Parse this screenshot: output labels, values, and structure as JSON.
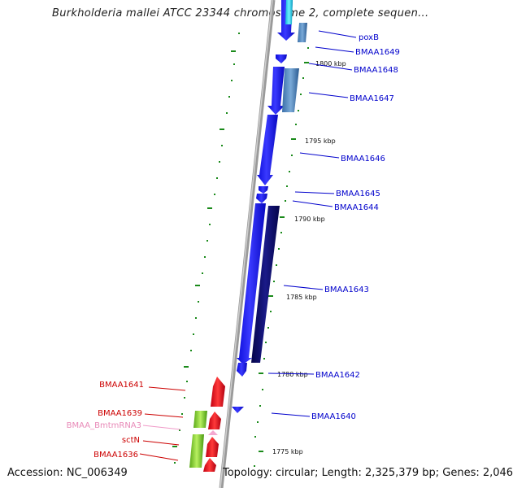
{
  "title": "Burkholderia mallei ATCC 23344 chromosome 2, complete sequen...",
  "footer": {
    "accession": "Accession: NC_006349",
    "stats": "Topology: circular; Length: 2,325,379 bp; Genes: 2,046"
  },
  "colors": {
    "forward_gene": "#1a1aee",
    "reverse_gene": "#0a0a6e",
    "forward_gene_light": "#5a90c8",
    "red_gene": "#e8202a",
    "green_gene": "#7ed22a",
    "rna_pink": "#f09ac8",
    "backbone": "#8a8a8a",
    "ticks": "#1a8a1a",
    "label_blue": "#0000cc",
    "label_red": "#cc0000"
  },
  "kbp_marks": [
    "1800 kbp",
    "1795 kbp",
    "1790 kbp",
    "1785 kbp",
    "1780 kbp",
    "1775 kbp"
  ],
  "gene_labels_right": [
    "poxB",
    "BMAA1649",
    "BMAA1648",
    "BMAA1647",
    "BMAA1646",
    "BMAA1645",
    "BMAA1644",
    "BMAA1643",
    "BMAA1642",
    "BMAA1640"
  ],
  "gene_labels_left": [
    "BMAA1641",
    "BMAA1639",
    "BMAA_BmtmRNA3",
    "sctN",
    "BMAA1636"
  ]
}
